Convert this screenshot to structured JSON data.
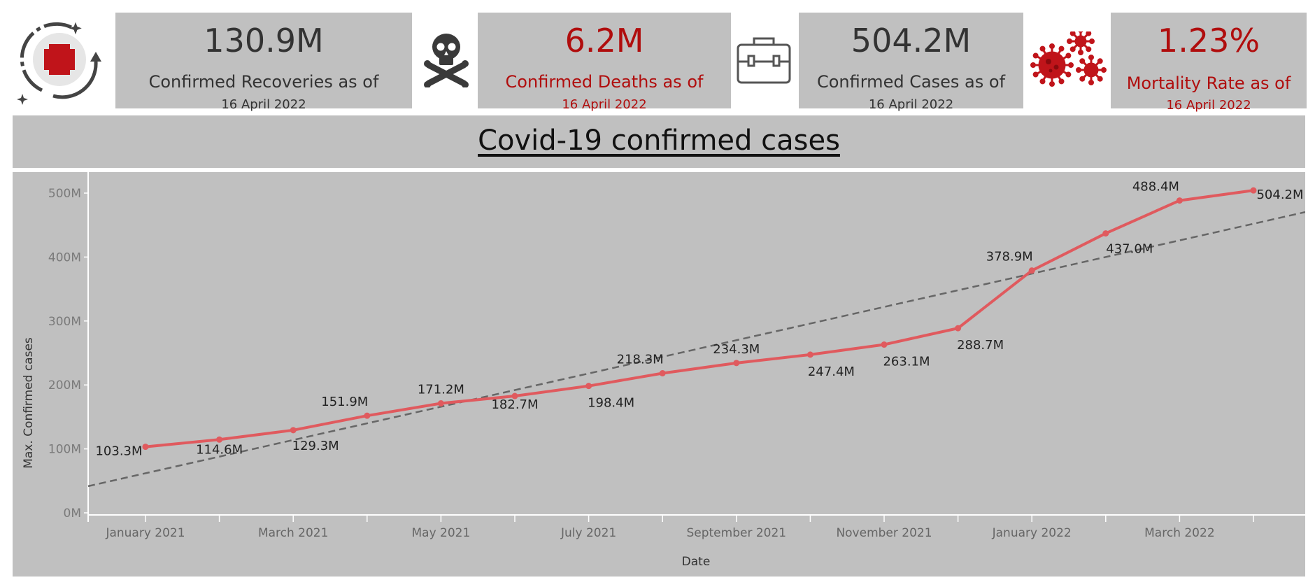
{
  "kpis": [
    {
      "id": "recoveries",
      "value": "130.9M",
      "label": "Confirmed Recoveries as of",
      "date": "16 April 2022"
    },
    {
      "id": "deaths",
      "value": "6.2M",
      "label": "Confirmed Deaths as of",
      "date": "16 April 2022"
    },
    {
      "id": "cases",
      "value": "504.2M",
      "label": "Confirmed Cases as of",
      "date": "16 April 2022"
    },
    {
      "id": "mortality",
      "value": "1.23%",
      "label": "Mortality Rate as of",
      "date": "16 April 2022"
    }
  ],
  "icons": {
    "recoveries": "medical-cross-icon",
    "deaths": "skull-crossbones-icon",
    "cases": "medical-kit-icon",
    "mortality": "virus-icon"
  },
  "colors": {
    "line": "#e05a5e",
    "trend": "#666666",
    "panel": "#c0c0c0",
    "accent_red": "#b00d0d"
  },
  "chart_data": {
    "type": "line",
    "title": "Covid-19  confirmed cases",
    "xlabel": "Date",
    "ylabel": "Max. Confirmed cases",
    "x": [
      "2021-01",
      "2021-02",
      "2021-03",
      "2021-04",
      "2021-05",
      "2021-06",
      "2021-07",
      "2021-08",
      "2021-09",
      "2021-10",
      "2021-11",
      "2021-12",
      "2022-01",
      "2022-02",
      "2022-03",
      "2022-04"
    ],
    "values": [
      103.3,
      114.6,
      129.3,
      151.9,
      171.2,
      182.7,
      198.4,
      218.3,
      234.3,
      247.4,
      263.1,
      288.7,
      378.9,
      437.0,
      488.4,
      504.2
    ],
    "data_labels": [
      "103.3M",
      "114.6M",
      "129.3M",
      "151.9M",
      "171.2M",
      "182.7M",
      "198.4M",
      "218.3M",
      "234.3M",
      "247.4M",
      "263.1M",
      "288.7M",
      "378.9M",
      "437.0M",
      "488.4M",
      "504.2M"
    ],
    "y_unit": "M",
    "ylim": [
      0,
      500
    ],
    "y_ticks": [
      "0M",
      "100M",
      "200M",
      "300M",
      "400M",
      "500M"
    ],
    "x_ticks": [
      "January 2021",
      "March 2021",
      "May 2021",
      "July 2021",
      "September 2021",
      "November 2021",
      "January 2022",
      "March 2022"
    ],
    "trend_line": "dashed linear trend",
    "grid": false
  }
}
